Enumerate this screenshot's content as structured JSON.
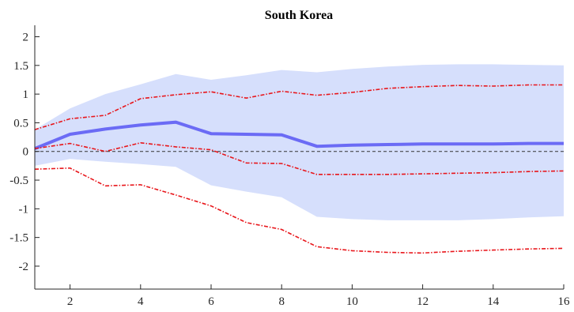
{
  "chart_data": {
    "type": "line",
    "title": "South Korea",
    "xlabel": "",
    "ylabel": "",
    "xlim": [
      1,
      16
    ],
    "ylim": [
      -2.4,
      2.2
    ],
    "xticks": [
      2,
      4,
      6,
      8,
      10,
      12,
      14,
      16
    ],
    "yticks": [
      -2,
      -1.5,
      -1,
      -0.5,
      0,
      0.5,
      1,
      1.5,
      2
    ],
    "ytick_labels": [
      "-2",
      "-1.5",
      "-1",
      "-0.5",
      "0",
      "0.5",
      "1",
      "1.5",
      "2"
    ],
    "grid": false,
    "legend": "none",
    "zero_line": true,
    "x": [
      1,
      2,
      3,
      4,
      5,
      6,
      7,
      8,
      9,
      10,
      11,
      12,
      13,
      14,
      15,
      16
    ],
    "band": {
      "upper": [
        0.38,
        0.75,
        1.0,
        1.17,
        1.35,
        1.25,
        1.33,
        1.42,
        1.38,
        1.44,
        1.48,
        1.51,
        1.52,
        1.52,
        1.51,
        1.5
      ],
      "lower": [
        -0.25,
        -0.13,
        -0.18,
        -0.22,
        -0.27,
        -0.59,
        -0.7,
        -0.8,
        -1.14,
        -1.18,
        -1.2,
        -1.2,
        -1.2,
        -1.18,
        -1.15,
        -1.13
      ],
      "color": "#d6dffc"
    },
    "series": [
      {
        "role": "median",
        "color": "#6b6bf5",
        "style": "solid",
        "values": [
          0.05,
          0.3,
          0.39,
          0.46,
          0.51,
          0.31,
          0.3,
          0.29,
          0.09,
          0.11,
          0.12,
          0.13,
          0.13,
          0.13,
          0.14,
          0.14
        ]
      },
      {
        "role": "upper",
        "color": "#e8161b",
        "style": "dashdot",
        "values": [
          0.38,
          0.57,
          0.63,
          0.92,
          0.99,
          1.04,
          0.93,
          1.05,
          0.98,
          1.03,
          1.1,
          1.13,
          1.15,
          1.14,
          1.16,
          1.16
        ]
      },
      {
        "role": "middle",
        "color": "#e8161b",
        "style": "dashdot",
        "values": [
          0.05,
          0.14,
          0.0,
          0.15,
          0.08,
          0.03,
          -0.2,
          -0.21,
          -0.4,
          -0.4,
          -0.4,
          -0.39,
          -0.38,
          -0.37,
          -0.35,
          -0.34
        ]
      },
      {
        "role": "lower",
        "color": "#e8161b",
        "style": "dashdot",
        "values": [
          -0.31,
          -0.29,
          -0.6,
          -0.58,
          -0.76,
          -0.95,
          -1.24,
          -1.36,
          -1.66,
          -1.73,
          -1.76,
          -1.77,
          -1.74,
          -1.72,
          -1.7,
          -1.69
        ]
      }
    ]
  }
}
